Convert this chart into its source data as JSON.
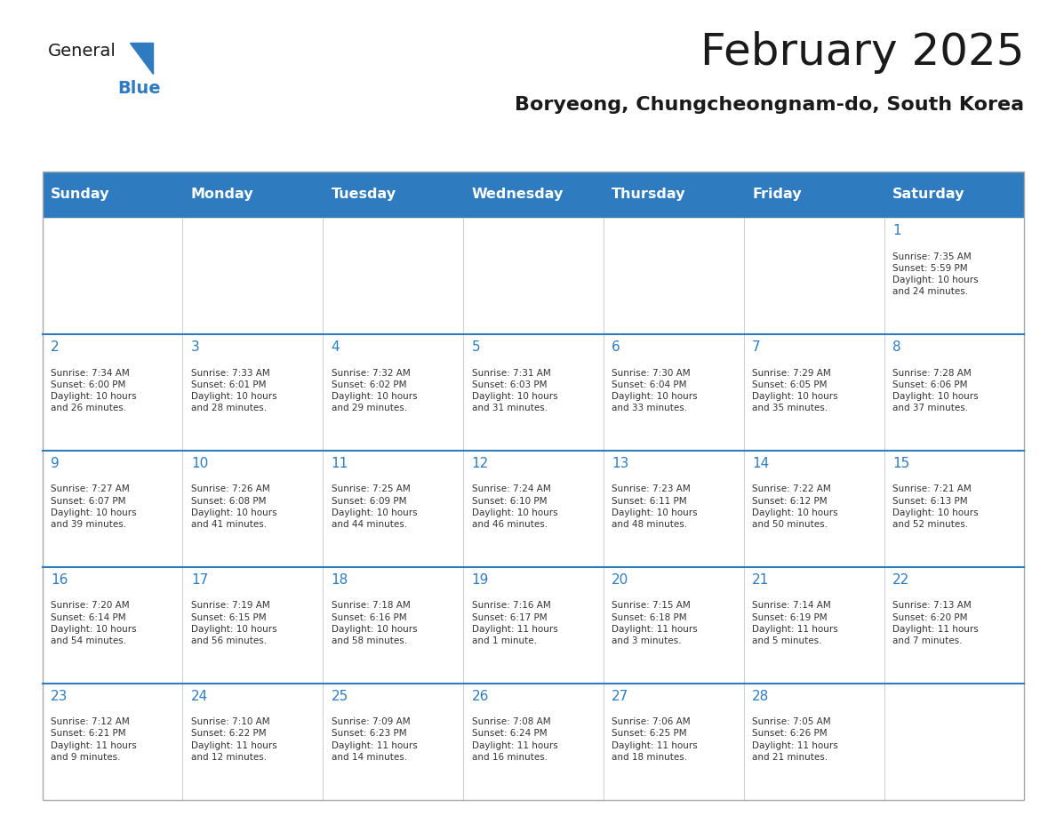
{
  "title": "February 2025",
  "subtitle": "Boryeong, Chungcheongnam-do, South Korea",
  "days_of_week": [
    "Sunday",
    "Monday",
    "Tuesday",
    "Wednesday",
    "Thursday",
    "Friday",
    "Saturday"
  ],
  "header_bg": "#2E7BBF",
  "header_text": "#FFFFFF",
  "cell_bg": "#FFFFFF",
  "cell_border": "#CCCCCC",
  "day_num_color": "#2E7BBF",
  "info_text_color": "#333333",
  "title_color": "#1a1a1a",
  "subtitle_color": "#1a1a1a",
  "logo_general_color": "#1a1a1a",
  "logo_blue_color": "#2E7BBF",
  "calendar_data": [
    [
      {
        "day": null,
        "info": ""
      },
      {
        "day": null,
        "info": ""
      },
      {
        "day": null,
        "info": ""
      },
      {
        "day": null,
        "info": ""
      },
      {
        "day": null,
        "info": ""
      },
      {
        "day": null,
        "info": ""
      },
      {
        "day": 1,
        "info": "Sunrise: 7:35 AM\nSunset: 5:59 PM\nDaylight: 10 hours\nand 24 minutes."
      }
    ],
    [
      {
        "day": 2,
        "info": "Sunrise: 7:34 AM\nSunset: 6:00 PM\nDaylight: 10 hours\nand 26 minutes."
      },
      {
        "day": 3,
        "info": "Sunrise: 7:33 AM\nSunset: 6:01 PM\nDaylight: 10 hours\nand 28 minutes."
      },
      {
        "day": 4,
        "info": "Sunrise: 7:32 AM\nSunset: 6:02 PM\nDaylight: 10 hours\nand 29 minutes."
      },
      {
        "day": 5,
        "info": "Sunrise: 7:31 AM\nSunset: 6:03 PM\nDaylight: 10 hours\nand 31 minutes."
      },
      {
        "day": 6,
        "info": "Sunrise: 7:30 AM\nSunset: 6:04 PM\nDaylight: 10 hours\nand 33 minutes."
      },
      {
        "day": 7,
        "info": "Sunrise: 7:29 AM\nSunset: 6:05 PM\nDaylight: 10 hours\nand 35 minutes."
      },
      {
        "day": 8,
        "info": "Sunrise: 7:28 AM\nSunset: 6:06 PM\nDaylight: 10 hours\nand 37 minutes."
      }
    ],
    [
      {
        "day": 9,
        "info": "Sunrise: 7:27 AM\nSunset: 6:07 PM\nDaylight: 10 hours\nand 39 minutes."
      },
      {
        "day": 10,
        "info": "Sunrise: 7:26 AM\nSunset: 6:08 PM\nDaylight: 10 hours\nand 41 minutes."
      },
      {
        "day": 11,
        "info": "Sunrise: 7:25 AM\nSunset: 6:09 PM\nDaylight: 10 hours\nand 44 minutes."
      },
      {
        "day": 12,
        "info": "Sunrise: 7:24 AM\nSunset: 6:10 PM\nDaylight: 10 hours\nand 46 minutes."
      },
      {
        "day": 13,
        "info": "Sunrise: 7:23 AM\nSunset: 6:11 PM\nDaylight: 10 hours\nand 48 minutes."
      },
      {
        "day": 14,
        "info": "Sunrise: 7:22 AM\nSunset: 6:12 PM\nDaylight: 10 hours\nand 50 minutes."
      },
      {
        "day": 15,
        "info": "Sunrise: 7:21 AM\nSunset: 6:13 PM\nDaylight: 10 hours\nand 52 minutes."
      }
    ],
    [
      {
        "day": 16,
        "info": "Sunrise: 7:20 AM\nSunset: 6:14 PM\nDaylight: 10 hours\nand 54 minutes."
      },
      {
        "day": 17,
        "info": "Sunrise: 7:19 AM\nSunset: 6:15 PM\nDaylight: 10 hours\nand 56 minutes."
      },
      {
        "day": 18,
        "info": "Sunrise: 7:18 AM\nSunset: 6:16 PM\nDaylight: 10 hours\nand 58 minutes."
      },
      {
        "day": 19,
        "info": "Sunrise: 7:16 AM\nSunset: 6:17 PM\nDaylight: 11 hours\nand 1 minute."
      },
      {
        "day": 20,
        "info": "Sunrise: 7:15 AM\nSunset: 6:18 PM\nDaylight: 11 hours\nand 3 minutes."
      },
      {
        "day": 21,
        "info": "Sunrise: 7:14 AM\nSunset: 6:19 PM\nDaylight: 11 hours\nand 5 minutes."
      },
      {
        "day": 22,
        "info": "Sunrise: 7:13 AM\nSunset: 6:20 PM\nDaylight: 11 hours\nand 7 minutes."
      }
    ],
    [
      {
        "day": 23,
        "info": "Sunrise: 7:12 AM\nSunset: 6:21 PM\nDaylight: 11 hours\nand 9 minutes."
      },
      {
        "day": 24,
        "info": "Sunrise: 7:10 AM\nSunset: 6:22 PM\nDaylight: 11 hours\nand 12 minutes."
      },
      {
        "day": 25,
        "info": "Sunrise: 7:09 AM\nSunset: 6:23 PM\nDaylight: 11 hours\nand 14 minutes."
      },
      {
        "day": 26,
        "info": "Sunrise: 7:08 AM\nSunset: 6:24 PM\nDaylight: 11 hours\nand 16 minutes."
      },
      {
        "day": 27,
        "info": "Sunrise: 7:06 AM\nSunset: 6:25 PM\nDaylight: 11 hours\nand 18 minutes."
      },
      {
        "day": 28,
        "info": "Sunrise: 7:05 AM\nSunset: 6:26 PM\nDaylight: 11 hours\nand 21 minutes."
      },
      {
        "day": null,
        "info": ""
      }
    ]
  ]
}
